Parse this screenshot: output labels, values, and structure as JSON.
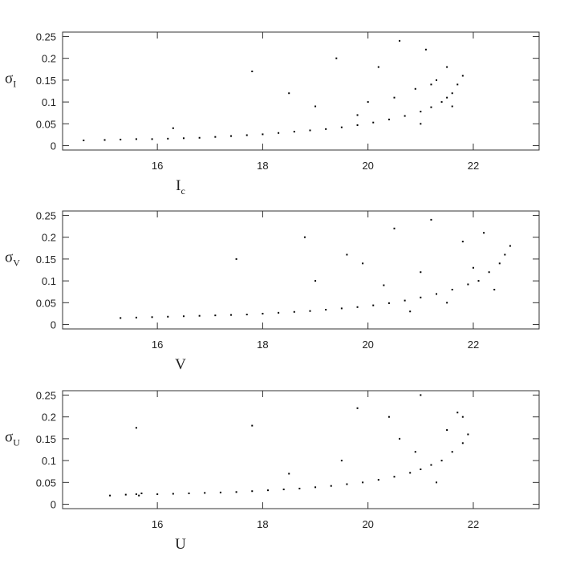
{
  "chart_data": [
    {
      "type": "scatter",
      "color": "#000000",
      "xlabel": {
        "text": "I",
        "subscript": "c"
      },
      "ylabel": {
        "text": "σ",
        "subscript": "I"
      },
      "xlim": [
        14.2,
        23.25
      ],
      "ylim": [
        -0.01,
        0.26
      ],
      "xticks": [
        16,
        18,
        20,
        22
      ],
      "yticks": [
        0,
        0.05,
        0.1,
        0.15,
        0.2,
        0.25
      ],
      "x": [
        14.6,
        15.0,
        15.3,
        15.6,
        15.9,
        16.2,
        16.5,
        16.8,
        17.1,
        17.4,
        17.7,
        18.0,
        18.3,
        18.6,
        18.9,
        19.2,
        19.5,
        19.8,
        20.1,
        20.4,
        20.7,
        21.0,
        21.2,
        21.4,
        21.5,
        21.6,
        21.7,
        21.8,
        18.5,
        19.4,
        20.2,
        20.6,
        21.1,
        21.3,
        17.8,
        19.0,
        20.0,
        20.9,
        21.5,
        16.3,
        21.0,
        21.6,
        19.8,
        20.5,
        21.2
      ],
      "values": [
        0.012,
        0.013,
        0.014,
        0.015,
        0.015,
        0.016,
        0.017,
        0.018,
        0.02,
        0.022,
        0.024,
        0.026,
        0.029,
        0.032,
        0.035,
        0.038,
        0.042,
        0.047,
        0.053,
        0.06,
        0.068,
        0.078,
        0.088,
        0.1,
        0.11,
        0.12,
        0.14,
        0.16,
        0.12,
        0.2,
        0.18,
        0.24,
        0.22,
        0.15,
        0.17,
        0.09,
        0.1,
        0.13,
        0.18,
        0.04,
        0.05,
        0.09,
        0.07,
        0.11,
        0.14
      ]
    },
    {
      "type": "scatter",
      "color": "#000000",
      "xlabel": {
        "text": "V"
      },
      "ylabel": {
        "text": "σ",
        "subscript": "V"
      },
      "xlim": [
        14.2,
        23.25
      ],
      "ylim": [
        -0.01,
        0.26
      ],
      "xticks": [
        16,
        18,
        20,
        22
      ],
      "yticks": [
        0,
        0.05,
        0.1,
        0.15,
        0.2,
        0.25
      ],
      "x": [
        15.3,
        15.6,
        15.9,
        16.2,
        16.5,
        16.8,
        17.1,
        17.4,
        17.7,
        18.0,
        18.3,
        18.6,
        18.9,
        19.2,
        19.5,
        19.8,
        20.1,
        20.4,
        20.7,
        21.0,
        21.3,
        21.6,
        21.9,
        22.1,
        22.3,
        22.5,
        22.6,
        22.7,
        18.8,
        19.6,
        20.5,
        21.2,
        21.8,
        22.2,
        17.5,
        19.0,
        20.3,
        21.0,
        22.4,
        21.5,
        22.0,
        20.8,
        19.9
      ],
      "values": [
        0.015,
        0.016,
        0.017,
        0.018,
        0.019,
        0.02,
        0.021,
        0.022,
        0.023,
        0.025,
        0.027,
        0.029,
        0.031,
        0.034,
        0.037,
        0.04,
        0.044,
        0.049,
        0.055,
        0.062,
        0.07,
        0.08,
        0.092,
        0.1,
        0.12,
        0.14,
        0.16,
        0.18,
        0.2,
        0.16,
        0.22,
        0.24,
        0.19,
        0.21,
        0.15,
        0.1,
        0.09,
        0.12,
        0.08,
        0.05,
        0.13,
        0.03,
        0.14
      ]
    },
    {
      "type": "scatter",
      "color": "#000000",
      "xlabel": {
        "text": "U"
      },
      "ylabel": {
        "text": "σ",
        "subscript": "U"
      },
      "xlim": [
        14.2,
        23.25
      ],
      "ylim": [
        -0.01,
        0.26
      ],
      "xticks": [
        16,
        18,
        20,
        22
      ],
      "yticks": [
        0,
        0.05,
        0.1,
        0.15,
        0.2,
        0.25
      ],
      "x": [
        15.1,
        15.4,
        15.6,
        15.65,
        15.7,
        16.0,
        16.3,
        16.6,
        16.9,
        17.2,
        17.5,
        17.8,
        18.1,
        18.4,
        18.7,
        19.0,
        19.3,
        19.6,
        19.9,
        20.2,
        20.5,
        20.8,
        21.0,
        21.2,
        21.4,
        21.6,
        21.8,
        21.9,
        15.6,
        17.8,
        19.8,
        20.4,
        21.0,
        21.5,
        21.7,
        20.9,
        18.5,
        19.5,
        21.3,
        20.6,
        21.8
      ],
      "values": [
        0.02,
        0.022,
        0.023,
        0.02,
        0.025,
        0.023,
        0.024,
        0.025,
        0.026,
        0.027,
        0.028,
        0.03,
        0.032,
        0.034,
        0.036,
        0.039,
        0.042,
        0.046,
        0.05,
        0.056,
        0.063,
        0.072,
        0.08,
        0.09,
        0.1,
        0.12,
        0.14,
        0.16,
        0.175,
        0.18,
        0.22,
        0.2,
        0.25,
        0.17,
        0.21,
        0.12,
        0.07,
        0.1,
        0.05,
        0.15,
        0.2
      ]
    }
  ]
}
